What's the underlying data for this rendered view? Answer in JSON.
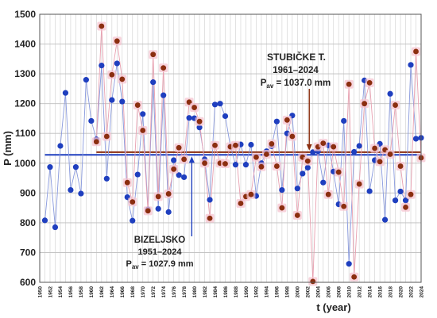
{
  "chart_data": {
    "type": "scatter",
    "ylabel": "P (mm)",
    "xlabel": "t (year)",
    "xlim": [
      1950,
      2024
    ],
    "ylim": [
      600,
      1500
    ],
    "y_ticks": [
      600,
      700,
      800,
      900,
      1000,
      1100,
      1200,
      1300,
      1400,
      1500
    ],
    "x_ticks": [
      1950,
      1952,
      1954,
      1956,
      1958,
      1960,
      1962,
      1964,
      1966,
      1968,
      1970,
      1972,
      1974,
      1976,
      1978,
      1980,
      1982,
      1984,
      1986,
      1988,
      1990,
      1992,
      1994,
      1996,
      1998,
      2000,
      2002,
      2004,
      2006,
      2008,
      2010,
      2012,
      2014,
      2016,
      2018,
      2020,
      2022,
      2024
    ],
    "grid": true,
    "series": [
      {
        "name": "BIZELJSKO",
        "period": "1951–2024",
        "mean_label": "P",
        "mean_subscript": "av",
        "mean_text": " = 1027.9 mm",
        "mean": 1027.9,
        "color": "#1f3fbf",
        "line_color": "#8899dd",
        "x": [
          1951,
          1952,
          1953,
          1954,
          1955,
          1956,
          1957,
          1958,
          1959,
          1960,
          1961,
          1962,
          1963,
          1964,
          1965,
          1966,
          1967,
          1968,
          1969,
          1970,
          1971,
          1972,
          1973,
          1974,
          1975,
          1976,
          1977,
          1978,
          1979,
          1980,
          1981,
          1982,
          1983,
          1984,
          1985,
          1986,
          1987,
          1988,
          1989,
          1990,
          1991,
          1992,
          1993,
          1994,
          1995,
          1996,
          1997,
          1998,
          1999,
          2000,
          2001,
          2002,
          2003,
          2004,
          2005,
          2006,
          2007,
          2008,
          2009,
          2010,
          2011,
          2012,
          2013,
          2014,
          2015,
          2016,
          2017,
          2018,
          2019,
          2020,
          2021,
          2022,
          2023,
          2024
        ],
        "y": [
          808,
          987,
          785,
          1058,
          1236,
          910,
          987,
          898,
          1280,
          1142,
          1080,
          1328,
          948,
          1212,
          1335,
          1207,
          886,
          807,
          962,
          1165,
          845,
          1272,
          847,
          1228,
          836,
          1010,
          960,
          953,
          1152,
          1151,
          1120,
          1013,
          877,
          1197,
          1200,
          1158,
          1056,
          995,
          1063,
          995,
          1062,
          890,
          1000,
          1040,
          1057,
          1140,
          910,
          1100,
          1160,
          915,
          965,
          985,
          1037,
          1040,
          935,
          1060,
          972,
          862,
          1142,
          662,
          1038,
          1058,
          1278,
          906,
          1010,
          1065,
          810,
          1233,
          875,
          905,
          875,
          1330,
          1082,
          1085
        ]
      },
      {
        "name": "STUBIČKE T.",
        "period": "1961–2024",
        "mean_label": "P",
        "mean_subscript": "av",
        "mean_text": " = 1037.0 mm",
        "mean": 1037.0,
        "color": "#8b2e0f",
        "line_color": "#e8a0b0",
        "x": [
          1961,
          1962,
          1963,
          1964,
          1965,
          1966,
          1967,
          1968,
          1969,
          1970,
          1971,
          1972,
          1973,
          1974,
          1975,
          1976,
          1977,
          1978,
          1979,
          1980,
          1981,
          1982,
          1983,
          1984,
          1985,
          1986,
          1987,
          1988,
          1989,
          1990,
          1991,
          1992,
          1993,
          1994,
          1995,
          1996,
          1997,
          1998,
          1999,
          2000,
          2001,
          2002,
          2003,
          2004,
          2005,
          2006,
          2007,
          2008,
          2009,
          2010,
          2011,
          2012,
          2013,
          2014,
          2015,
          2016,
          2017,
          2018,
          2019,
          2020,
          2021,
          2022,
          2023,
          2024
        ],
        "y": [
          1072,
          1460,
          1090,
          1297,
          1410,
          1282,
          935,
          870,
          1195,
          1110,
          840,
          1365,
          888,
          1320,
          897,
          980,
          1052,
          1013,
          1205,
          1187,
          1140,
          1000,
          815,
          1060,
          1000,
          998,
          1055,
          1060,
          865,
          888,
          895,
          1020,
          988,
          1030,
          1065,
          990,
          850,
          1145,
          1090,
          825,
          1020,
          1007,
          603,
          1055,
          1067,
          895,
          1055,
          970,
          855,
          1265,
          618,
          930,
          1200,
          1270,
          1050,
          1005,
          1045,
          1030,
          1195,
          990,
          852,
          895,
          1375,
          1018
        ]
      }
    ]
  }
}
